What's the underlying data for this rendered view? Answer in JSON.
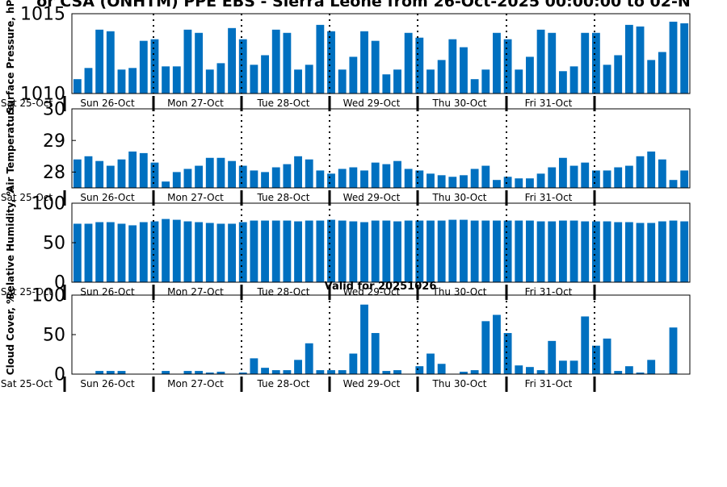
{
  "title": "or CSA (ONHTM) PPE EBS  - Sierra Leone from 26-Oct-2025 00:00:00 to 02-N",
  "valid_for": "Valid for 20251026",
  "bar_color": "#0070c0",
  "day_labels": [
    "Sat 25-Oct",
    "Sun 26-Oct",
    "Mon 27-Oct",
    "Tue 28-Oct",
    "Wed 29-Oct",
    "Thu 30-Oct",
    "Fri 31-Oct"
  ],
  "chart_data": [
    {
      "type": "bar",
      "ylabel": "Surface Pressure, hPa",
      "ylim": [
        1010,
        1015
      ],
      "yticks": [
        "1010",
        "1015"
      ],
      "values": [
        1010.9,
        1011.6,
        1014.0,
        1013.9,
        1011.5,
        1011.6,
        1013.3,
        1013.4,
        1011.7,
        1011.7,
        1014.0,
        1013.8,
        1011.5,
        1011.9,
        1014.1,
        1013.4,
        1011.8,
        1012.4,
        1014.0,
        1013.8,
        1011.5,
        1011.8,
        1014.3,
        1013.9,
        1011.5,
        1012.3,
        1013.9,
        1013.3,
        1011.2,
        1011.5,
        1013.8,
        1013.5,
        1011.5,
        1012.1,
        1013.4,
        1012.9,
        1010.9,
        1011.5,
        1013.8,
        1013.4,
        1011.5,
        1012.3,
        1014.0,
        1013.8,
        1011.4,
        1011.7,
        1013.8,
        1013.8,
        1011.8,
        1012.4,
        1014.3,
        1014.2,
        1012.1,
        1012.6,
        1014.5,
        1014.4
      ]
    },
    {
      "type": "bar",
      "ylabel": "Air Temperature",
      "ylim": [
        27.5,
        30
      ],
      "yticks": [
        "28",
        "29",
        "30"
      ],
      "values": [
        28.4,
        28.5,
        28.35,
        28.2,
        28.4,
        28.65,
        28.6,
        28.3,
        27.7,
        28.0,
        28.1,
        28.2,
        28.45,
        28.45,
        28.35,
        28.2,
        28.05,
        28.0,
        28.15,
        28.25,
        28.5,
        28.4,
        28.05,
        27.95,
        28.1,
        28.15,
        28.05,
        28.3,
        28.25,
        28.35,
        28.1,
        28.05,
        27.95,
        27.9,
        27.85,
        27.9,
        28.1,
        28.2,
        27.75,
        27.85,
        27.8,
        27.8,
        27.95,
        28.15,
        28.45,
        28.2,
        28.3,
        28.05,
        28.05,
        28.15,
        28.2,
        28.5,
        28.65,
        28.4,
        27.75,
        28.05
      ]
    },
    {
      "type": "bar",
      "ylabel": "Relative Humidity, %",
      "ylim": [
        0,
        100
      ],
      "yticks": [
        "0",
        "50",
        "100"
      ],
      "values": [
        74,
        74,
        76,
        76,
        74,
        72,
        76,
        77,
        80,
        79,
        77,
        76,
        75,
        74,
        74,
        76,
        78,
        78,
        78,
        78,
        77,
        78,
        78,
        79,
        78,
        77,
        76,
        78,
        78,
        77,
        78,
        78,
        78,
        78,
        79,
        79,
        78,
        78,
        78,
        78,
        78,
        78,
        77,
        77,
        78,
        78,
        77,
        77,
        77,
        76,
        76,
        75,
        75,
        77,
        78,
        77
      ]
    },
    {
      "type": "bar",
      "ylabel": "Cloud Cover, %",
      "ylim": [
        0,
        100
      ],
      "yticks": [
        "0",
        "50",
        "100"
      ],
      "values": [
        0,
        0,
        4,
        4,
        4,
        0,
        0,
        0,
        4,
        0,
        4,
        4,
        2,
        3,
        0,
        2,
        20,
        8,
        5,
        5,
        18,
        39,
        5,
        5,
        5,
        26,
        88,
        52,
        4,
        5,
        0,
        10,
        26,
        13,
        0,
        3,
        5,
        67,
        75,
        52,
        11,
        9,
        5,
        42,
        17,
        17,
        73,
        36,
        45,
        4,
        10,
        2,
        18,
        0,
        59,
        0
      ]
    }
  ]
}
